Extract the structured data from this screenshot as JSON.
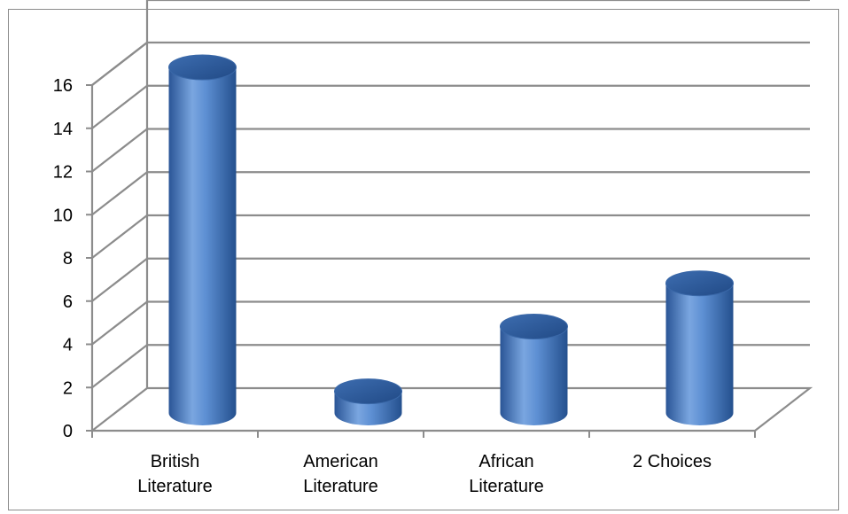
{
  "chart_data": {
    "type": "bar",
    "style": "3d-cylinder",
    "categories": [
      [
        "British",
        "Literature"
      ],
      [
        "American",
        "Literature"
      ],
      [
        "African",
        "Literature"
      ],
      [
        "2 Choices"
      ]
    ],
    "values": [
      16,
      1,
      4,
      6
    ],
    "ylim": [
      0,
      16
    ],
    "yticks": [
      "0",
      "2",
      "4",
      "6",
      "8",
      "10",
      "12",
      "14",
      "16"
    ],
    "grid": true,
    "legend": "none",
    "colors": {
      "bar_light": "#7aa6e0",
      "bar_mid": "#4a7ebf",
      "bar_dark": "#25508f",
      "bar_top": "#2c5b9e",
      "grid": "#8c8c8c"
    }
  }
}
